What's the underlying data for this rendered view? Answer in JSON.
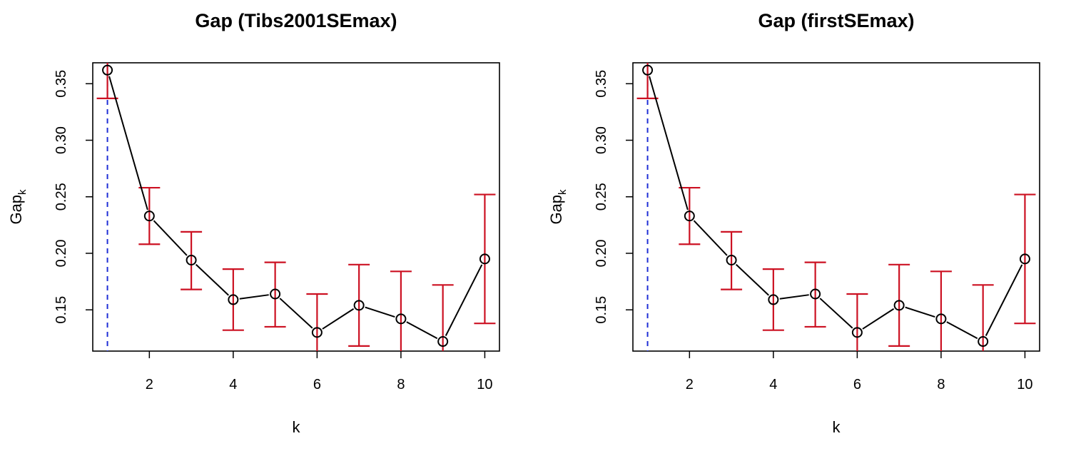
{
  "chart_data": [
    {
      "type": "line",
      "title": "Gap (Tibs2001SEmax)",
      "xlabel": "k",
      "ylabel": "Gap",
      "ylabel_subscript": "k",
      "x": [
        1,
        2,
        3,
        4,
        5,
        6,
        7,
        8,
        9,
        10
      ],
      "series": [
        {
          "values": [
            0.362,
            0.233,
            0.194,
            0.159,
            0.164,
            0.13,
            0.154,
            0.142,
            0.122,
            0.195
          ],
          "error_upper": [
            0.387,
            0.258,
            0.219,
            0.186,
            0.192,
            0.164,
            0.19,
            0.184,
            0.172,
            0.252
          ],
          "error_lower": [
            0.337,
            0.208,
            0.168,
            0.132,
            0.135,
            0.096,
            0.118,
            0.1,
            0.072,
            0.138
          ]
        }
      ],
      "selected_k": 1,
      "xlim": [
        0.65,
        10.35
      ],
      "ylim": [
        0.1135,
        0.3685
      ],
      "xticks": [
        2,
        4,
        6,
        8,
        10
      ],
      "xtick_labels": [
        "2",
        "4",
        "6",
        "8",
        "10"
      ],
      "yticks": [
        0.15,
        0.2,
        0.25,
        0.3,
        0.35
      ],
      "ytick_labels": [
        "0.15",
        "0.20",
        "0.25",
        "0.30",
        "0.35"
      ],
      "grid": false,
      "colors": {
        "line": "#000000",
        "error_bar": "#cc1122",
        "selected_line": "#1f2fd6"
      }
    },
    {
      "type": "line",
      "title": "Gap (firstSEmax)",
      "xlabel": "k",
      "ylabel": "Gap",
      "ylabel_subscript": "k",
      "x": [
        1,
        2,
        3,
        4,
        5,
        6,
        7,
        8,
        9,
        10
      ],
      "series": [
        {
          "values": [
            0.362,
            0.233,
            0.194,
            0.159,
            0.164,
            0.13,
            0.154,
            0.142,
            0.122,
            0.195
          ],
          "error_upper": [
            0.387,
            0.258,
            0.219,
            0.186,
            0.192,
            0.164,
            0.19,
            0.184,
            0.172,
            0.252
          ],
          "error_lower": [
            0.337,
            0.208,
            0.168,
            0.132,
            0.135,
            0.096,
            0.118,
            0.1,
            0.072,
            0.138
          ]
        }
      ],
      "selected_k": 1,
      "xlim": [
        0.65,
        10.35
      ],
      "ylim": [
        0.1135,
        0.3685
      ],
      "xticks": [
        2,
        4,
        6,
        8,
        10
      ],
      "xtick_labels": [
        "2",
        "4",
        "6",
        "8",
        "10"
      ],
      "yticks": [
        0.15,
        0.2,
        0.25,
        0.3,
        0.35
      ],
      "ytick_labels": [
        "0.15",
        "0.20",
        "0.25",
        "0.30",
        "0.35"
      ],
      "grid": false,
      "colors": {
        "line": "#000000",
        "error_bar": "#cc1122",
        "selected_line": "#1f2fd6"
      }
    }
  ]
}
